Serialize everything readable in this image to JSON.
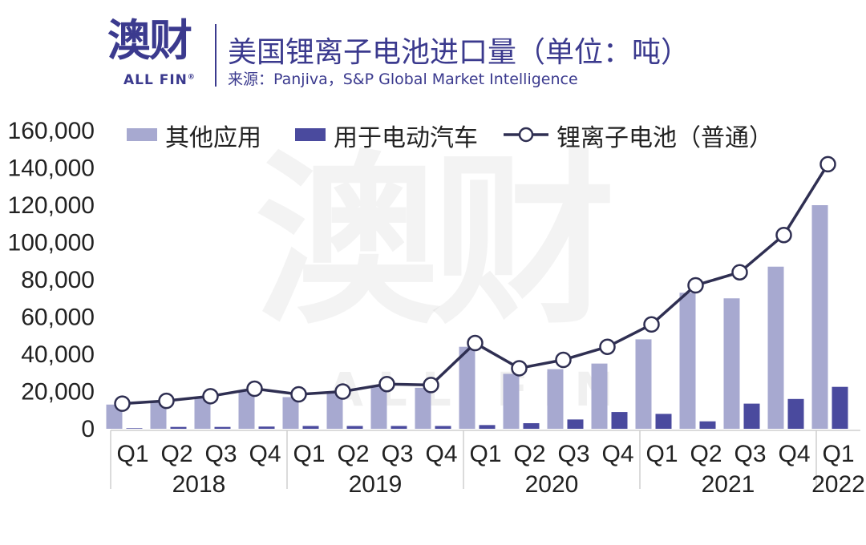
{
  "header": {
    "logo_cn": "澳财",
    "logo_en": "ALL FIN",
    "logo_reg": "®",
    "title": "美国锂离子电池进口量（单位：吨）",
    "subtitle": "来源：Panjiva，S&P Global Market Intelligence"
  },
  "watermark": {
    "cn": "澳财",
    "en": "ALL FIN"
  },
  "colors": {
    "other_bar": "#a7a9d0",
    "ev_bar": "#4a4a9e",
    "line": "#2f2f52",
    "marker_fill": "#ffffff",
    "axis_text": "#222222",
    "brand": "#3b3a8e"
  },
  "chart_data": {
    "type": "bar",
    "title": "美国锂离子电池进口量（单位：吨）",
    "categories": [
      "Q1",
      "Q2",
      "Q3",
      "Q4",
      "Q1",
      "Q2",
      "Q3",
      "Q4",
      "Q1",
      "Q2",
      "Q3",
      "Q4",
      "Q1",
      "Q2",
      "Q3",
      "Q4",
      "Q1"
    ],
    "groups": [
      {
        "label": "2018",
        "count": 4
      },
      {
        "label": "2019",
        "count": 4
      },
      {
        "label": "2020",
        "count": 4
      },
      {
        "label": "2021",
        "count": 4
      },
      {
        "label": "2022",
        "count": 1
      }
    ],
    "ylim": [
      0,
      160000
    ],
    "yticks": [
      0,
      20000,
      40000,
      60000,
      80000,
      100000,
      120000,
      140000,
      160000
    ],
    "ytick_labels": [
      "0",
      "20,000",
      "40,000",
      "60,000",
      "80,000",
      "100,000",
      "120,000",
      "140,000",
      "160,000"
    ],
    "legend_position": "top",
    "grid": false,
    "series": [
      {
        "name": "其他应用",
        "kind": "bar",
        "values": [
          13000,
          14000,
          16500,
          20000,
          17000,
          19000,
          23000,
          22000,
          44000,
          29500,
          32000,
          35000,
          48000,
          73000,
          70000,
          87000,
          120000
        ]
      },
      {
        "name": "用于电动汽车",
        "kind": "bar",
        "values": [
          300,
          1000,
          1000,
          1200,
          1500,
          1500,
          1500,
          1500,
          2000,
          3000,
          5000,
          9000,
          8000,
          4000,
          13500,
          16000,
          22500
        ]
      },
      {
        "name": "锂离子电池（普通）",
        "kind": "line",
        "values": [
          13500,
          15000,
          17500,
          21500,
          18500,
          20000,
          24000,
          23500,
          46000,
          32500,
          37000,
          44000,
          56000,
          77000,
          84000,
          104000,
          142000
        ]
      }
    ]
  }
}
